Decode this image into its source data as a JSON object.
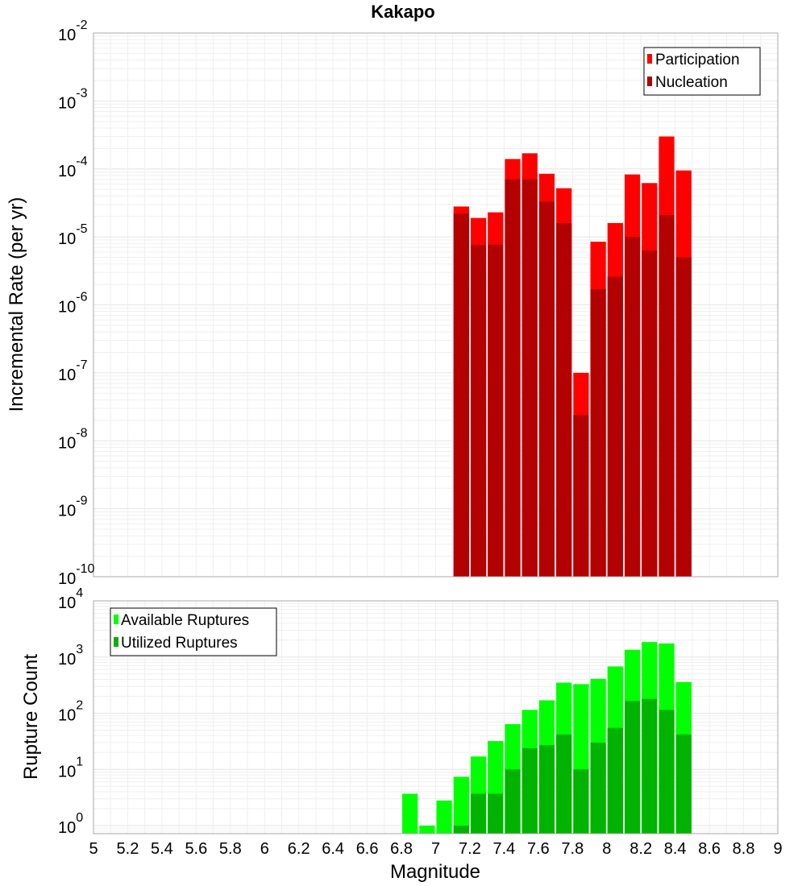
{
  "chart_data": [
    {
      "type": "bar",
      "title": "Kakapo",
      "ylabel": "Incremental Rate (per yr)",
      "xlabel": "",
      "xlim": [
        5,
        9
      ],
      "yscale": "log",
      "ylim": [
        1e-10,
        0.01
      ],
      "ytick_exponents": [
        "-2",
        "-3",
        "-4",
        "-5",
        "-6",
        "-7",
        "-8",
        "-9",
        "-10"
      ],
      "bar_width": 0.1,
      "x": [
        7.15,
        7.25,
        7.35,
        7.45,
        7.55,
        7.65,
        7.75,
        7.85,
        7.95,
        8.05,
        8.15,
        8.25,
        8.35,
        8.45
      ],
      "series": [
        {
          "name": "Participation",
          "color": "#ff0000",
          "values": [
            2.8e-05,
            1.9e-05,
            2.3e-05,
            0.00014,
            0.00017,
            8.5e-05,
            5.2e-05,
            1e-07,
            8.5e-06,
            1.6e-05,
            8.3e-05,
            6.2e-05,
            0.0003,
            9.5e-05
          ]
        },
        {
          "name": "Nucleation",
          "color": "#b30000",
          "values": [
            2.2e-05,
            7.6e-06,
            7.7e-06,
            7e-05,
            7e-05,
            3.3e-05,
            1.6e-05,
            2.4e-08,
            1.7e-06,
            2.6e-06,
            1e-05,
            6.3e-06,
            2.1e-05,
            5e-06
          ]
        }
      ],
      "legend": "top-right",
      "grid": true
    },
    {
      "type": "bar",
      "title": "",
      "ylabel": "Rupture Count",
      "xlabel": "Magnitude",
      "xlim": [
        5,
        9
      ],
      "yscale": "log",
      "ylim": [
        0.72,
        10000
      ],
      "ytick_exponents": [
        "4",
        "3",
        "2",
        "1",
        "0"
      ],
      "xtick_labels": [
        "5",
        "5.2",
        "5.4",
        "5.6",
        "5.8",
        "6",
        "6.2",
        "6.4",
        "6.6",
        "6.8",
        "7",
        "7.2",
        "7.4",
        "7.6",
        "7.8",
        "8",
        "8.2",
        "8.4",
        "8.6",
        "8.8",
        "9"
      ],
      "bar_width": 0.1,
      "x": [
        6.85,
        6.95,
        7.05,
        7.15,
        7.25,
        7.35,
        7.45,
        7.55,
        7.65,
        7.75,
        7.85,
        7.95,
        8.05,
        8.15,
        8.25,
        8.35,
        8.45
      ],
      "series": [
        {
          "name": "Available Ruptures",
          "color": "#00ff00",
          "values": [
            3.7,
            1.0,
            2.8,
            7.4,
            17,
            32,
            64,
            115,
            170,
            350,
            330,
            410,
            680,
            1350,
            1850,
            1750,
            360
          ]
        },
        {
          "name": "Utilized Ruptures",
          "color": "#00b300",
          "values": [
            0,
            0,
            0,
            1.0,
            3.7,
            3.7,
            10,
            24,
            27,
            42,
            10,
            30,
            55,
            165,
            180,
            115,
            42
          ]
        }
      ],
      "legend": "top-left",
      "grid": true
    }
  ]
}
